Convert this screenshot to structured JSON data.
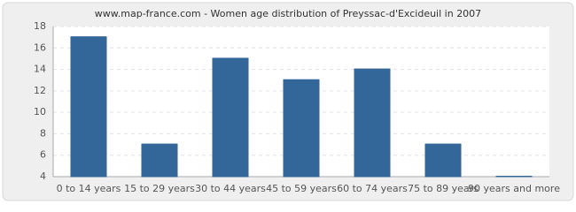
{
  "chart_data": {
    "type": "bar",
    "title": "www.map-france.com - Women age distribution of Preyssac-d'Excideuil in 2007",
    "categories": [
      "0 to 14 years",
      "15 to 29 years",
      "30 to 44 years",
      "45 to 59 years",
      "60 to 74 years",
      "75 to 89 years",
      "90 years and more"
    ],
    "values": [
      17,
      7,
      15,
      13,
      14,
      7,
      4
    ],
    "color": "#336699",
    "ylim": [
      4,
      18
    ],
    "yticks": [
      4,
      6,
      8,
      10,
      12,
      14,
      16,
      18
    ],
    "grid": true
  }
}
